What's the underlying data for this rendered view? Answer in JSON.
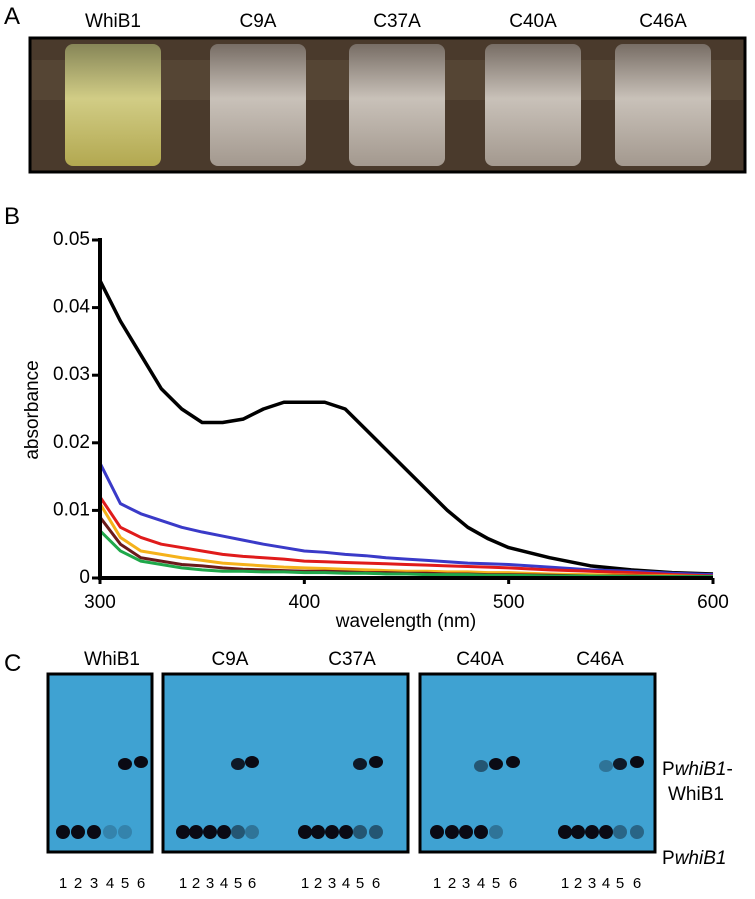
{
  "panel_labels": [
    "A",
    "B",
    "C"
  ],
  "photo": {
    "labels": [
      "WhiB1",
      "C9A",
      "C37A",
      "C40A",
      "C46A"
    ]
  },
  "chart_data": {
    "type": "line",
    "xlabel": "wavelength (nm)",
    "ylabel": "absorbance",
    "x": [
      300,
      310,
      320,
      330,
      340,
      350,
      360,
      370,
      380,
      390,
      400,
      410,
      420,
      430,
      440,
      450,
      460,
      470,
      480,
      490,
      500,
      520,
      540,
      560,
      580,
      600
    ],
    "xlim": [
      300,
      600
    ],
    "ylim": [
      0,
      0.05
    ],
    "xticks": [
      300,
      400,
      500,
      600
    ],
    "yticks": [
      0,
      0.01,
      0.02,
      0.03,
      0.04,
      0.05
    ],
    "series": [
      {
        "color": "#000000",
        "values": [
          0.044,
          0.038,
          0.033,
          0.028,
          0.025,
          0.023,
          0.023,
          0.0235,
          0.025,
          0.026,
          0.026,
          0.026,
          0.025,
          0.022,
          0.019,
          0.016,
          0.013,
          0.01,
          0.0075,
          0.0058,
          0.0045,
          0.003,
          0.0018,
          0.0012,
          0.0008,
          0.0006
        ]
      },
      {
        "color": "#3a3ac8",
        "values": [
          0.017,
          0.011,
          0.0095,
          0.0085,
          0.0075,
          0.0068,
          0.0062,
          0.0056,
          0.005,
          0.0045,
          0.004,
          0.0038,
          0.0035,
          0.0033,
          0.003,
          0.0028,
          0.0026,
          0.0024,
          0.0022,
          0.0021,
          0.002,
          0.0016,
          0.0012,
          0.001,
          0.0007,
          0.0005
        ]
      },
      {
        "color": "#e01b1b",
        "values": [
          0.012,
          0.0075,
          0.006,
          0.005,
          0.0045,
          0.004,
          0.0035,
          0.0032,
          0.003,
          0.0028,
          0.0025,
          0.0024,
          0.0023,
          0.0022,
          0.0021,
          0.002,
          0.0019,
          0.0018,
          0.0017,
          0.0016,
          0.0015,
          0.0012,
          0.001,
          0.0008,
          0.0005,
          0.0003
        ]
      },
      {
        "color": "#f5b21b",
        "values": [
          0.011,
          0.006,
          0.004,
          0.0035,
          0.003,
          0.0026,
          0.0022,
          0.002,
          0.0018,
          0.0016,
          0.0015,
          0.0014,
          0.0013,
          0.0012,
          0.0011,
          0.001,
          0.001,
          0.0009,
          0.0009,
          0.0008,
          0.0008,
          0.0006,
          0.0005,
          0.0004,
          0.0003,
          0.0002
        ]
      },
      {
        "color": "#6b1a1a",
        "values": [
          0.009,
          0.005,
          0.003,
          0.0025,
          0.002,
          0.0018,
          0.0015,
          0.0013,
          0.0012,
          0.0011,
          0.001,
          0.001,
          0.0009,
          0.0008,
          0.0008,
          0.0007,
          0.0007,
          0.0006,
          0.0006,
          0.0005,
          0.0005,
          0.0004,
          0.0003,
          0.0003,
          0.0002,
          0.0002
        ]
      },
      {
        "color": "#1fa84a",
        "values": [
          0.007,
          0.004,
          0.0025,
          0.002,
          0.0015,
          0.0012,
          0.001,
          0.001,
          0.0009,
          0.0009,
          0.0008,
          0.0008,
          0.0007,
          0.0007,
          0.0006,
          0.0006,
          0.0005,
          0.0005,
          0.0005,
          0.0004,
          0.0004,
          0.0003,
          0.0003,
          0.0002,
          0.0002,
          0.0002
        ]
      }
    ]
  },
  "gel": {
    "titles": [
      "WhiB1",
      "C9A",
      "C37A",
      "C40A",
      "C46A"
    ],
    "lanes": [
      "1",
      "2",
      "3",
      "4",
      "5",
      "6"
    ],
    "label_upper": [
      "P",
      "whiB1",
      "-"
    ],
    "label_upper2": "WhiB1",
    "label_lower": [
      "P",
      "whiB1"
    ]
  }
}
